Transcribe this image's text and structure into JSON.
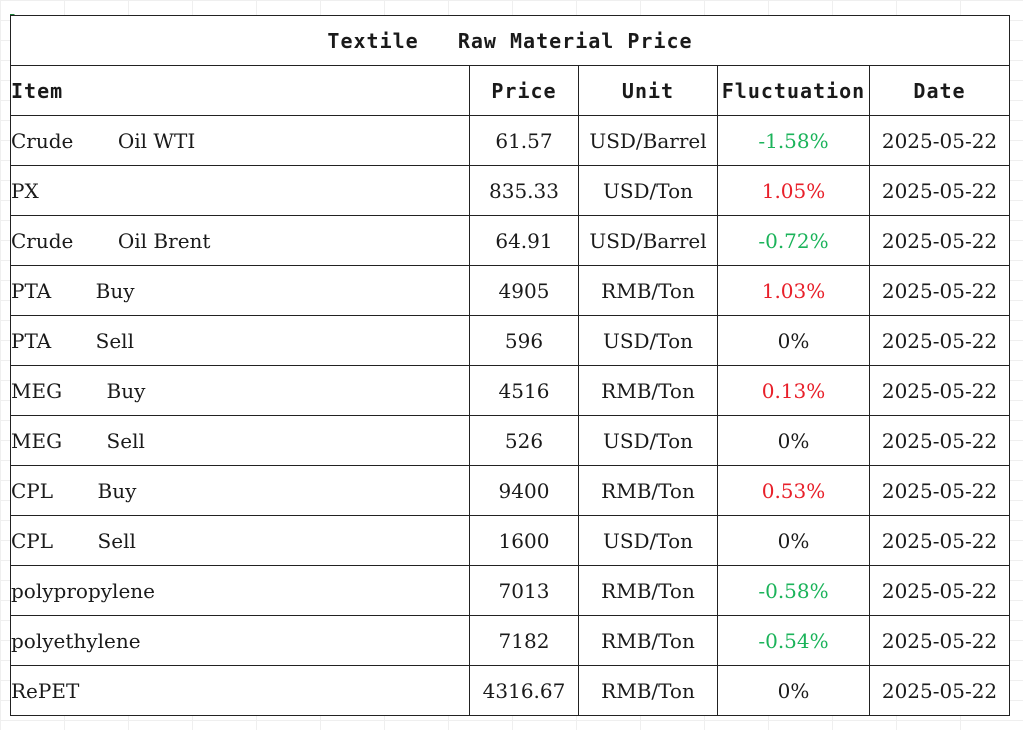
{
  "table": {
    "title": "Textile   Raw Material Price",
    "headers": {
      "item": "Item",
      "price": "Price",
      "unit": "Unit",
      "fluctuation": "Fluctuation",
      "date": "Date"
    },
    "rows": [
      {
        "item": "Crude       Oil WTI",
        "price": "61.57",
        "unit": "USD/Barrel",
        "fluctuation": "-1.58%",
        "trend": "down",
        "date": "2025-05-22"
      },
      {
        "item": "PX",
        "price": "835.33",
        "unit": "USD/Ton",
        "fluctuation": "1.05%",
        "trend": "up",
        "date": "2025-05-22"
      },
      {
        "item": "Crude       Oil Brent",
        "price": "64.91",
        "unit": "USD/Barrel",
        "fluctuation": "-0.72%",
        "trend": "down",
        "date": "2025-05-22"
      },
      {
        "item": "PTA       Buy",
        "price": "4905",
        "unit": "RMB/Ton",
        "fluctuation": "1.03%",
        "trend": "up",
        "date": "2025-05-22"
      },
      {
        "item": "PTA       Sell",
        "price": "596",
        "unit": "USD/Ton",
        "fluctuation": "0%",
        "trend": "flat",
        "date": "2025-05-22"
      },
      {
        "item": "MEG       Buy",
        "price": "4516",
        "unit": "RMB/Ton",
        "fluctuation": "0.13%",
        "trend": "up",
        "date": "2025-05-22"
      },
      {
        "item": "MEG       Sell",
        "price": "526",
        "unit": "USD/Ton",
        "fluctuation": "0%",
        "trend": "flat",
        "date": "2025-05-22"
      },
      {
        "item": "CPL       Buy",
        "price": "9400",
        "unit": "RMB/Ton",
        "fluctuation": "0.53%",
        "trend": "up",
        "date": "2025-05-22"
      },
      {
        "item": "CPL       Sell",
        "price": "1600",
        "unit": "USD/Ton",
        "fluctuation": "0%",
        "trend": "flat",
        "date": "2025-05-22"
      },
      {
        "item": "polypropylene",
        "price": "7013",
        "unit": "RMB/Ton",
        "fluctuation": "-0.58%",
        "trend": "down",
        "date": "2025-05-22"
      },
      {
        "item": "polyethylene",
        "price": "7182",
        "unit": "RMB/Ton",
        "fluctuation": "-0.54%",
        "trend": "down",
        "date": "2025-05-22"
      },
      {
        "item": "RePET",
        "price": "4316.67",
        "unit": "RMB/Ton",
        "fluctuation": "0%",
        "trend": "flat",
        "date": "2025-05-22"
      }
    ]
  },
  "colors": {
    "up": "#e8202a",
    "down": "#1bb35a",
    "flat": "#1a1a1a"
  }
}
